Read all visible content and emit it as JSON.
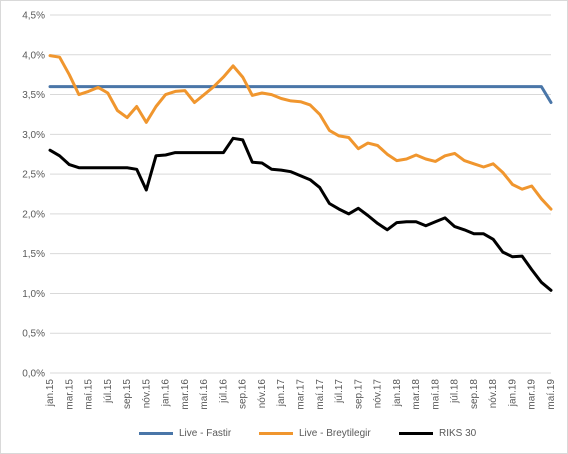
{
  "chart_data": {
    "type": "line",
    "title": "",
    "xlabel": "",
    "ylabel": "",
    "ylim": [
      0,
      4.5
    ],
    "y_ticks": [
      "0,0%",
      "0,5%",
      "1,0%",
      "1,5%",
      "2,0%",
      "2,5%",
      "3,0%",
      "3,5%",
      "4,0%",
      "4,5%"
    ],
    "y_tick_values": [
      0,
      0.5,
      1.0,
      1.5,
      2.0,
      2.5,
      3.0,
      3.5,
      4.0,
      4.5
    ],
    "grid": "horizontal",
    "legend_position": "bottom",
    "categories": [
      "jan.15",
      "feb.15",
      "mar.15",
      "apr.15",
      "maí.15",
      "jún.15",
      "júl.15",
      "ágú.15",
      "sep.15",
      "okt.15",
      "nóv.15",
      "des.15",
      "jan.16",
      "feb.16",
      "mar.16",
      "apr.16",
      "maí.16",
      "jún.16",
      "júl.16",
      "ágú.16",
      "sep.16",
      "okt.16",
      "nóv.16",
      "des.16",
      "jan.17",
      "feb.17",
      "mar.17",
      "apr.17",
      "maí.17",
      "jún.17",
      "júl.17",
      "ágú.17",
      "sep.17",
      "okt.17",
      "nóv.17",
      "des.17",
      "jan.18",
      "feb.18",
      "mar.18",
      "apr.18",
      "maí.18",
      "jún.18",
      "júl.18",
      "ágú.18",
      "sep.18",
      "okt.18",
      "nóv.18",
      "des.18",
      "jan.19",
      "feb.19",
      "mar.19",
      "apr.19",
      "maí.19"
    ],
    "x_tick_labels": [
      "jan.15",
      "mar.15",
      "maí.15",
      "júl.15",
      "sep.15",
      "nóv.15",
      "jan.16",
      "mar.16",
      "maí.16",
      "júl.16",
      "sep.16",
      "nóv.16",
      "jan.17",
      "mar.17",
      "maí.17",
      "júl.17",
      "sep.17",
      "nóv.17",
      "jan.18",
      "mar.18",
      "maí.18",
      "júl.18",
      "sep.18",
      "nóv.18",
      "jan.19",
      "mar.19",
      "maí.19"
    ],
    "series": [
      {
        "name": "Live - Fastir",
        "color": "#4a76a8",
        "values": [
          3.6,
          3.6,
          3.6,
          3.6,
          3.6,
          3.6,
          3.6,
          3.6,
          3.6,
          3.6,
          3.6,
          3.6,
          3.6,
          3.6,
          3.6,
          3.6,
          3.6,
          3.6,
          3.6,
          3.6,
          3.6,
          3.6,
          3.6,
          3.6,
          3.6,
          3.6,
          3.6,
          3.6,
          3.6,
          3.6,
          3.6,
          3.6,
          3.6,
          3.6,
          3.6,
          3.6,
          3.6,
          3.6,
          3.6,
          3.6,
          3.6,
          3.6,
          3.6,
          3.6,
          3.6,
          3.6,
          3.6,
          3.6,
          3.6,
          3.6,
          3.6,
          3.6,
          3.4
        ]
      },
      {
        "name": "Live - Breytilegir",
        "color": "#f0962e",
        "values": [
          3.99,
          3.97,
          3.75,
          3.5,
          3.54,
          3.59,
          3.52,
          3.3,
          3.21,
          3.35,
          3.15,
          3.35,
          3.5,
          3.54,
          3.55,
          3.4,
          3.5,
          3.6,
          3.72,
          3.86,
          3.72,
          3.49,
          3.52,
          3.5,
          3.45,
          3.42,
          3.41,
          3.37,
          3.25,
          3.05,
          2.98,
          2.96,
          2.82,
          2.89,
          2.86,
          2.75,
          2.67,
          2.69,
          2.74,
          2.69,
          2.66,
          2.73,
          2.76,
          2.67,
          2.63,
          2.59,
          2.63,
          2.52,
          2.37,
          2.31,
          2.35,
          2.19,
          2.06
        ]
      },
      {
        "name": "RIKS 30",
        "color": "#000000",
        "values": [
          2.8,
          2.73,
          2.62,
          2.58,
          2.58,
          2.58,
          2.58,
          2.58,
          2.58,
          2.56,
          2.3,
          2.73,
          2.74,
          2.77,
          2.77,
          2.77,
          2.77,
          2.77,
          2.77,
          2.95,
          2.93,
          2.65,
          2.64,
          2.56,
          2.55,
          2.53,
          2.48,
          2.43,
          2.33,
          2.13,
          2.06,
          2.0,
          2.07,
          1.98,
          1.88,
          1.8,
          1.89,
          1.9,
          1.9,
          1.85,
          1.9,
          1.95,
          1.84,
          1.8,
          1.75,
          1.75,
          1.68,
          1.52,
          1.46,
          1.47,
          1.3,
          1.14,
          1.04
        ]
      }
    ]
  }
}
